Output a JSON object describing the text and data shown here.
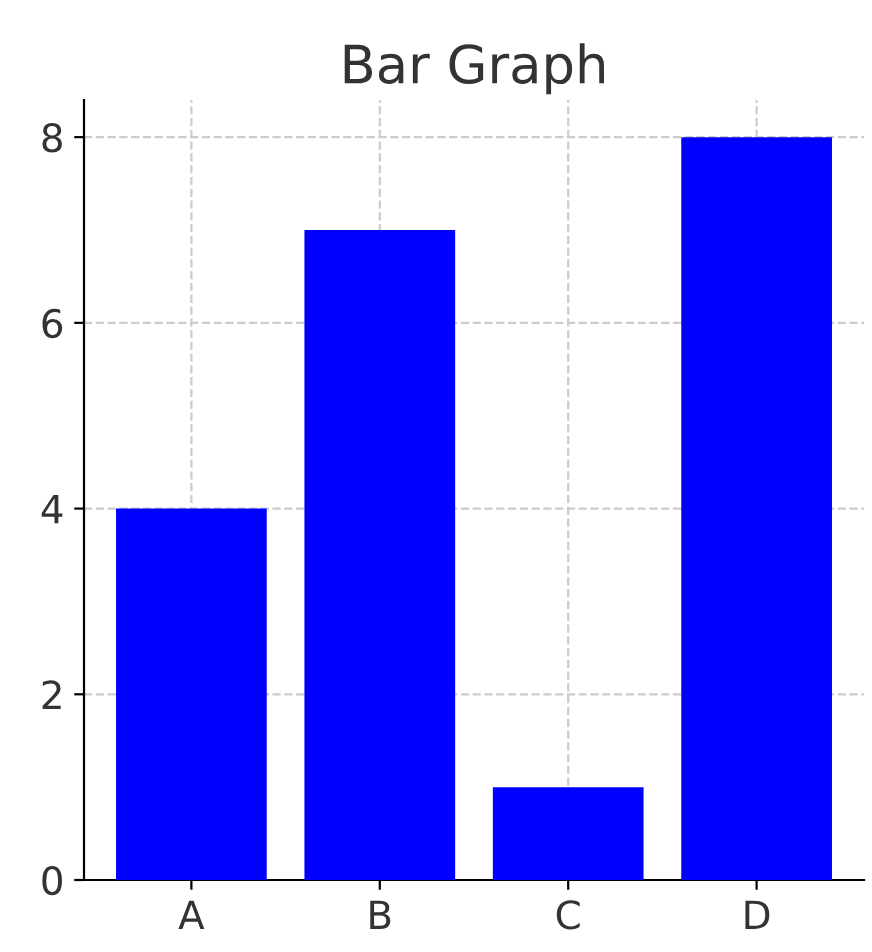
{
  "chart_data": {
    "type": "bar",
    "title": "Bar Graph",
    "categories": [
      "A",
      "B",
      "C",
      "D"
    ],
    "values": [
      4,
      7,
      1,
      8
    ],
    "color": "#0000ff",
    "ylim": [
      0,
      8.4
    ],
    "yticks": [
      0,
      2,
      4,
      6,
      8
    ],
    "grid": true
  }
}
